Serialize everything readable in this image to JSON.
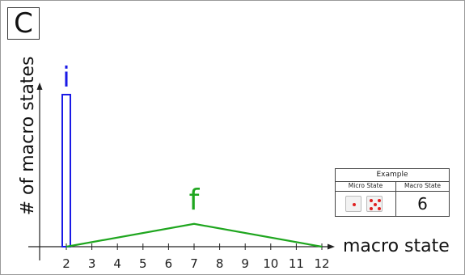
{
  "panel": {
    "letter": "C"
  },
  "chart_data": {
    "type": "line",
    "ylabel": "# of macro states",
    "xlabel": "macro state",
    "categories": [
      2,
      3,
      4,
      5,
      6,
      7,
      8,
      9,
      10,
      11,
      12
    ],
    "series": [
      {
        "name": "i",
        "kind": "bar",
        "x": [
          2
        ],
        "values": [
          1.0
        ],
        "color": "#1a1ae6"
      },
      {
        "name": "f",
        "kind": "line",
        "x": [
          2,
          7,
          12
        ],
        "values": [
          0,
          0.15,
          0
        ],
        "color": "#1fa61f"
      }
    ],
    "xlim": [
      1.0,
      12.5
    ],
    "ylim": [
      0,
      1.2
    ],
    "grid": false
  },
  "example": {
    "title": "Example",
    "micro_label": "Micro State",
    "macro_label": "Macro State",
    "dice": [
      1,
      5
    ],
    "macro_value": "6"
  }
}
